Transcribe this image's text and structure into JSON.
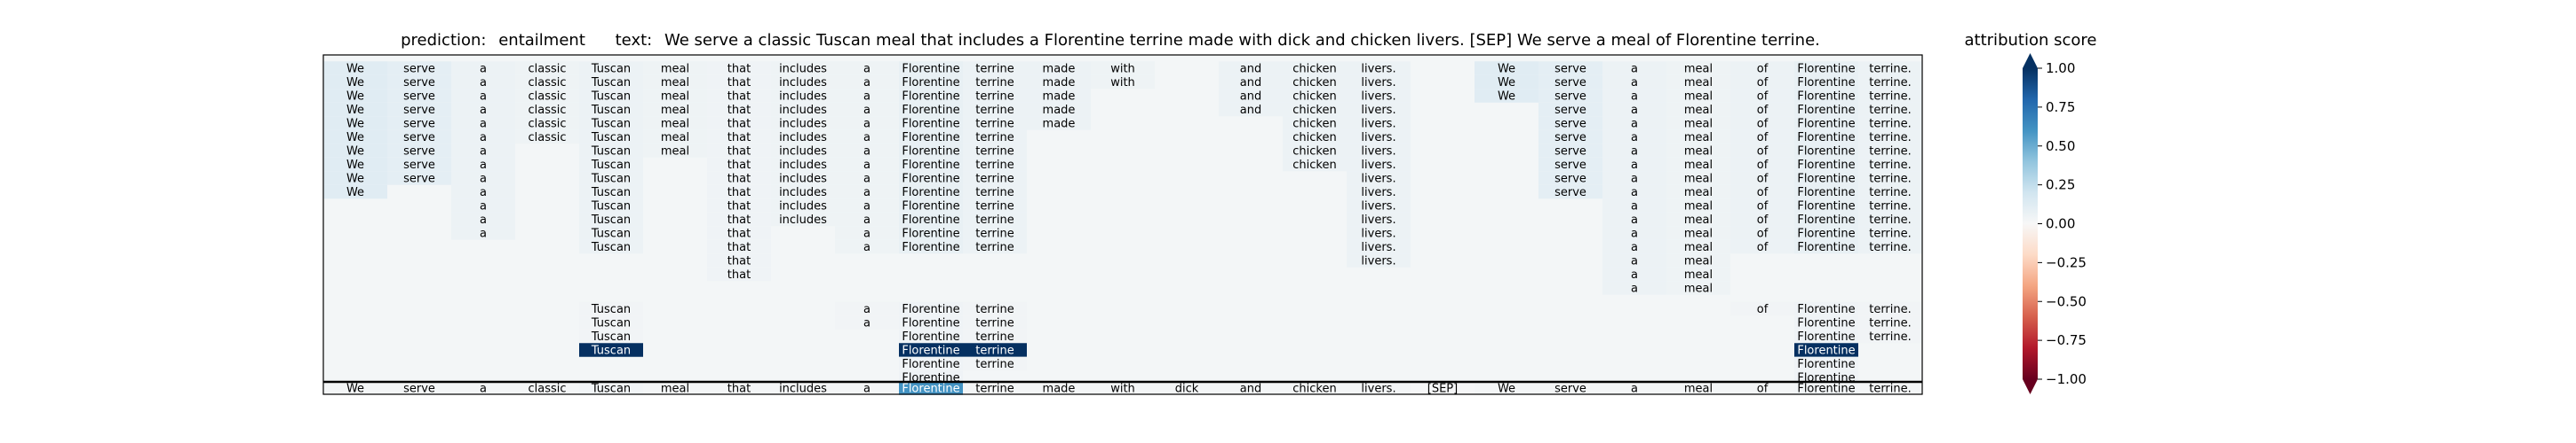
{
  "header": {
    "prediction_label": "prediction:",
    "prediction_value": "entailment",
    "text_label": "text:",
    "text_value": "We serve a classic Tuscan meal that includes a Florentine terrine made with dick and chicken livers. [SEP] We serve a meal of Florentine terrine."
  },
  "colorbar": {
    "title": "attribution score",
    "ticks": [
      "1.00",
      "0.75",
      "0.50",
      "0.25",
      "0.00",
      "−0.25",
      "−0.50",
      "−0.75",
      "−1.00"
    ],
    "tick_values": [
      1.0,
      0.75,
      0.5,
      0.25,
      0.0,
      -0.25,
      -0.5,
      -0.75,
      -1.0
    ],
    "colormap": "RdBu",
    "extend": "both"
  },
  "chart_data": {
    "type": "heatmap",
    "title": "prediction:  entailment     text:  We serve a classic Tuscan meal that includes a Florentine terrine made with dick and chicken livers. [SEP] We serve a meal of Florentine terrine.",
    "tokens": [
      "We",
      "serve",
      "a",
      "classic",
      "Tuscan",
      "meal",
      "that",
      "includes",
      "a",
      "Florentine",
      "terrine",
      "made",
      "with",
      "dick",
      "and",
      "chicken",
      "livers.",
      "[SEP]",
      "We",
      "serve",
      "a",
      "meal",
      "of",
      "Florentine",
      "terrine."
    ],
    "rows": [
      {
        "c": [
          0,
          1,
          2,
          3,
          4,
          5,
          6,
          7,
          8,
          9,
          10,
          11,
          12,
          14,
          15,
          16,
          18,
          19,
          20,
          21,
          22,
          23,
          24
        ],
        "v": [
          0.12,
          0.1,
          0.06,
          0.05,
          0.06,
          0.05,
          0.04,
          0.05,
          0.05,
          0.08,
          0.06,
          0.06,
          0.05,
          0.06,
          0.06,
          0.06,
          0.12,
          0.1,
          0.06,
          0.05,
          0.06,
          0.08,
          0.06
        ]
      },
      {
        "c": [
          0,
          1,
          2,
          3,
          4,
          5,
          6,
          7,
          8,
          9,
          10,
          11,
          12,
          14,
          15,
          16,
          18,
          19,
          20,
          21,
          22,
          23,
          24
        ],
        "v": [
          0.12,
          0.1,
          0.06,
          0.05,
          0.06,
          0.05,
          0.04,
          0.05,
          0.05,
          0.08,
          0.06,
          0.06,
          0.05,
          0.06,
          0.06,
          0.06,
          0.12,
          0.1,
          0.06,
          0.05,
          0.06,
          0.08,
          0.06
        ]
      },
      {
        "c": [
          0,
          1,
          2,
          3,
          4,
          5,
          6,
          7,
          8,
          9,
          10,
          11,
          14,
          15,
          16,
          18,
          19,
          20,
          21,
          22,
          23,
          24
        ],
        "v": [
          0.12,
          0.1,
          0.06,
          0.05,
          0.06,
          0.05,
          0.04,
          0.05,
          0.05,
          0.08,
          0.06,
          0.06,
          0.06,
          0.06,
          0.06,
          0.12,
          0.1,
          0.06,
          0.05,
          0.06,
          0.08,
          0.06
        ]
      },
      {
        "c": [
          0,
          1,
          2,
          3,
          4,
          5,
          6,
          7,
          8,
          9,
          10,
          11,
          14,
          15,
          16,
          19,
          20,
          21,
          22,
          23,
          24
        ],
        "v": [
          0.12,
          0.1,
          0.06,
          0.05,
          0.06,
          0.05,
          0.04,
          0.05,
          0.05,
          0.08,
          0.06,
          0.06,
          0.06,
          0.06,
          0.06,
          0.1,
          0.06,
          0.05,
          0.06,
          0.08,
          0.06
        ]
      },
      {
        "c": [
          0,
          1,
          2,
          3,
          4,
          5,
          6,
          7,
          8,
          9,
          10,
          11,
          15,
          16,
          19,
          20,
          21,
          22,
          23,
          24
        ],
        "v": [
          0.12,
          0.1,
          0.06,
          0.05,
          0.06,
          0.05,
          0.04,
          0.05,
          0.05,
          0.08,
          0.06,
          0.06,
          0.06,
          0.06,
          0.1,
          0.06,
          0.05,
          0.06,
          0.08,
          0.06
        ]
      },
      {
        "c": [
          0,
          1,
          2,
          3,
          4,
          5,
          6,
          7,
          8,
          9,
          10,
          15,
          16,
          19,
          20,
          21,
          22,
          23,
          24
        ],
        "v": [
          0.12,
          0.1,
          0.06,
          0.05,
          0.06,
          0.05,
          0.04,
          0.05,
          0.05,
          0.08,
          0.06,
          0.06,
          0.06,
          0.1,
          0.06,
          0.05,
          0.06,
          0.08,
          0.06
        ]
      },
      {
        "c": [
          0,
          1,
          2,
          4,
          5,
          6,
          7,
          8,
          9,
          10,
          15,
          16,
          19,
          20,
          21,
          22,
          23,
          24
        ],
        "v": [
          0.12,
          0.1,
          0.06,
          0.06,
          0.05,
          0.04,
          0.05,
          0.05,
          0.08,
          0.06,
          0.06,
          0.06,
          0.1,
          0.06,
          0.05,
          0.06,
          0.08,
          0.06
        ]
      },
      {
        "c": [
          0,
          1,
          2,
          4,
          6,
          7,
          8,
          9,
          10,
          15,
          16,
          19,
          20,
          21,
          22,
          23,
          24
        ],
        "v": [
          0.12,
          0.1,
          0.06,
          0.06,
          0.04,
          0.05,
          0.05,
          0.08,
          0.06,
          0.06,
          0.06,
          0.1,
          0.06,
          0.05,
          0.06,
          0.08,
          0.06
        ]
      },
      {
        "c": [
          0,
          1,
          2,
          4,
          6,
          7,
          8,
          9,
          10,
          16,
          19,
          20,
          21,
          22,
          23,
          24
        ],
        "v": [
          0.12,
          0.1,
          0.06,
          0.06,
          0.04,
          0.05,
          0.05,
          0.08,
          0.06,
          0.06,
          0.1,
          0.06,
          0.05,
          0.06,
          0.08,
          0.06
        ]
      },
      {
        "c": [
          0,
          2,
          4,
          6,
          7,
          8,
          9,
          10,
          16,
          19,
          20,
          21,
          22,
          23,
          24
        ],
        "v": [
          0.12,
          0.06,
          0.06,
          0.04,
          0.05,
          0.05,
          0.08,
          0.06,
          0.06,
          0.1,
          0.06,
          0.05,
          0.06,
          0.08,
          0.06
        ]
      },
      {
        "c": [
          2,
          4,
          6,
          7,
          8,
          9,
          10,
          16,
          20,
          21,
          22,
          23,
          24
        ],
        "v": [
          0.06,
          0.06,
          0.04,
          0.05,
          0.05,
          0.08,
          0.06,
          0.06,
          0.06,
          0.05,
          0.06,
          0.08,
          0.06
        ]
      },
      {
        "c": [
          2,
          4,
          6,
          7,
          8,
          9,
          10,
          16,
          20,
          21,
          22,
          23,
          24
        ],
        "v": [
          0.06,
          0.06,
          0.04,
          0.05,
          0.05,
          0.08,
          0.06,
          0.06,
          0.06,
          0.05,
          0.06,
          0.08,
          0.06
        ]
      },
      {
        "c": [
          2,
          4,
          6,
          8,
          9,
          10,
          16,
          20,
          21,
          22,
          23,
          24
        ],
        "v": [
          0.06,
          0.06,
          0.04,
          0.05,
          0.08,
          0.06,
          0.06,
          0.06,
          0.05,
          0.06,
          0.08,
          0.06
        ]
      },
      {
        "c": [
          4,
          6,
          8,
          9,
          10,
          16,
          20,
          21,
          22,
          23,
          24
        ],
        "v": [
          0.06,
          0.04,
          0.05,
          0.08,
          0.06,
          0.06,
          0.06,
          0.05,
          0.06,
          0.08,
          0.06
        ]
      },
      {
        "c": [
          6,
          16,
          20,
          21
        ],
        "v": [
          0.04,
          0.06,
          0.06,
          0.05
        ]
      },
      {
        "c": [
          6,
          20,
          21
        ],
        "v": [
          0.04,
          0.06,
          0.05
        ]
      },
      {
        "c": [
          20,
          21
        ],
        "v": [
          0.06,
          0.05
        ]
      },
      {
        "c": [
          4,
          8,
          9,
          10,
          22,
          23,
          24
        ],
        "v": [
          0.03,
          0.03,
          0.04,
          0.03,
          0.03,
          0.04,
          0.03
        ]
      },
      {
        "c": [
          4,
          8,
          9,
          10,
          23,
          24
        ],
        "v": [
          0.03,
          0.03,
          0.04,
          0.03,
          0.04,
          0.03
        ]
      },
      {
        "c": [
          4,
          9,
          10,
          23,
          24
        ],
        "v": [
          0.03,
          0.04,
          0.03,
          0.04,
          0.03
        ]
      },
      {
        "c": [
          4,
          9,
          10,
          23
        ],
        "v": [
          1.0,
          1.0,
          1.0,
          1.0
        ]
      },
      {
        "c": [
          9,
          10,
          23
        ],
        "v": [
          0.04,
          0.03,
          0.04
        ]
      },
      {
        "c": [
          9,
          23
        ],
        "v": [
          0.04,
          0.04
        ]
      }
    ],
    "bottom_row": {
      "tokens_from": "tokens",
      "values": [
        0.02,
        0.02,
        0.02,
        0.02,
        0.03,
        0.02,
        0.02,
        0.02,
        0.02,
        0.6,
        0.02,
        0.02,
        0.02,
        0.02,
        0.02,
        0.02,
        0.02,
        0.01,
        0.02,
        0.02,
        0.02,
        0.02,
        0.02,
        0.03,
        0.02
      ]
    },
    "vmin": -1.0,
    "vmax": 1.0,
    "colormap": "RdBu",
    "grid": false
  }
}
